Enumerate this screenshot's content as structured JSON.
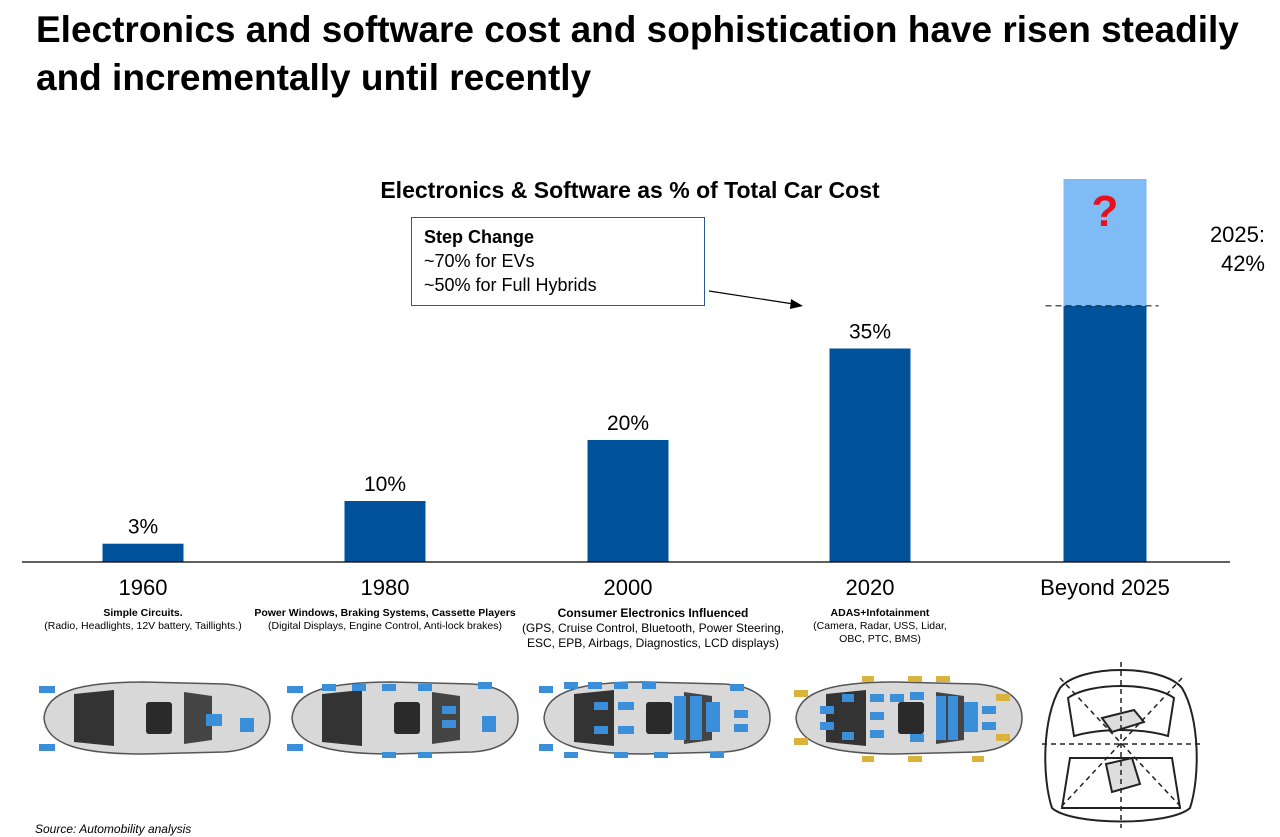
{
  "slide_title": "Electronics and software cost and sophistication have risen steadily and incrementally until recently",
  "source": "Source: Automobility analysis",
  "chart_data": {
    "type": "bar",
    "title": "Electronics & Software as % of Total Car Cost",
    "categories": [
      "1960",
      "1980",
      "2000",
      "2020",
      "Beyond 2025"
    ],
    "values": [
      3,
      10,
      20,
      35,
      42
    ],
    "value_labels": [
      "3%",
      "10%",
      "20%",
      "35%",
      ""
    ],
    "unknown_extension": {
      "category": "Beyond 2025",
      "label": "?",
      "dashed_level_label": "2025:\n42%"
    },
    "bar_color": "#00539b",
    "unknown_color": "#7fbcf6",
    "question_color": "#e8101b",
    "xlabel": "",
    "ylabel": "",
    "grid": false
  },
  "callout": {
    "heading": "Step Change",
    "line1": "~70% for EVs",
    "line2": "~50% for Full Hybrids"
  },
  "captions": [
    {
      "title": "Simple Circuits.",
      "detail": "(Radio, Headlights, 12V battery, Taillights.)"
    },
    {
      "title": "Power Windows, Braking Systems, Cassette Players",
      "detail": "(Digital Displays, Engine Control, Anti-lock brakes)"
    },
    {
      "title": "Consumer Electronics Influenced",
      "detail": "(GPS, Cruise Control, Bluetooth, Power Steering, ESC, EPB, Airbags, Diagnostics, LCD displays)"
    },
    {
      "title": "ADAS+Infotainment",
      "detail": "(Camera, Radar, USS, Lidar, OBC, PTC, BMS)"
    }
  ]
}
